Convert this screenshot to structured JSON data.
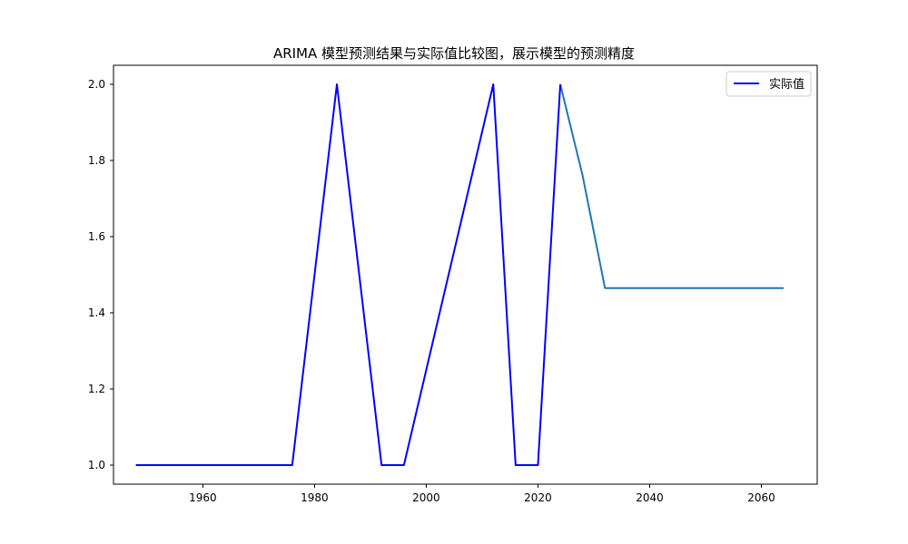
{
  "chart_data": {
    "type": "line",
    "title": "ARIMA 模型预测结果与实际值比较图，展示模型的预测精度",
    "xlabel": "",
    "ylabel": "",
    "xlim": [
      1944,
      2070
    ],
    "ylim": [
      0.95,
      2.05
    ],
    "x_ticks": [
      1960,
      1980,
      2000,
      2020,
      2040,
      2060
    ],
    "y_ticks": [
      1.0,
      1.2,
      1.4,
      1.6,
      1.8,
      2.0
    ],
    "x_tick_labels": [
      "1960",
      "1980",
      "2000",
      "2020",
      "2040",
      "2060"
    ],
    "y_tick_labels": [
      "1.0",
      "1.2",
      "1.4",
      "1.6",
      "1.8",
      "2.0"
    ],
    "grid": false,
    "legend_position": "top-right",
    "series": [
      {
        "name": "实际值",
        "color": "#0000ff",
        "in_legend": true,
        "x": [
          1948,
          1952,
          1956,
          1960,
          1964,
          1968,
          1972,
          1976,
          1980,
          1984,
          1988,
          1992,
          1996,
          2000,
          2004,
          2008,
          2012,
          2016,
          2020,
          2024
        ],
        "y": [
          1,
          1,
          1,
          1,
          1,
          1,
          1,
          1,
          1.5,
          2,
          1.5,
          1,
          1,
          1.25,
          1.5,
          1.75,
          2,
          1,
          1,
          2
        ]
      },
      {
        "color": "#1f77b4",
        "in_legend": false,
        "x": [
          2024,
          2028,
          2032,
          2036,
          2040,
          2044,
          2048,
          2052,
          2056,
          2060,
          2064
        ],
        "y": [
          2,
          1.76,
          1.465,
          1.465,
          1.465,
          1.465,
          1.465,
          1.465,
          1.465,
          1.465,
          1.465
        ]
      }
    ]
  }
}
